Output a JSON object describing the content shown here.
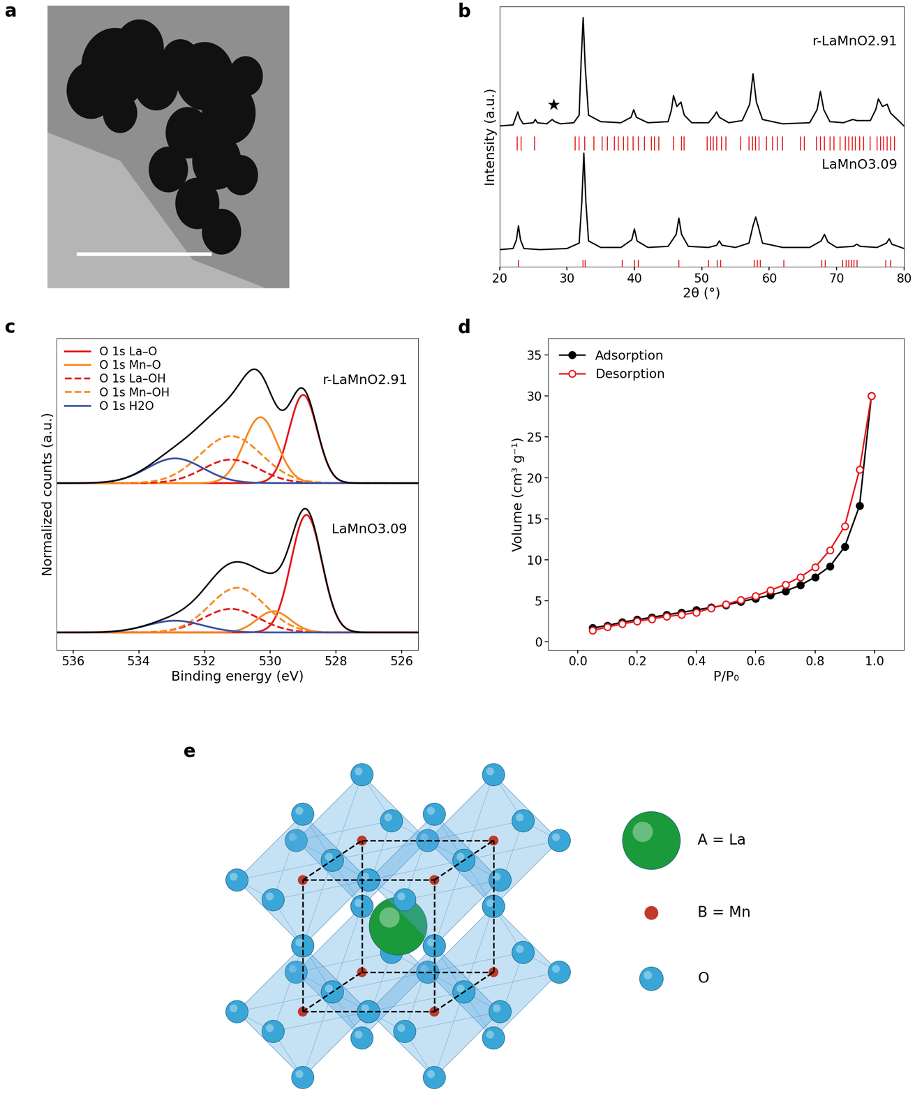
{
  "chart_data": [
    {
      "panel": "a",
      "type": "image"
    },
    {
      "panel": "b",
      "type": "line",
      "y_label": "Intensity (a.u.)",
      "x_label": "2θ (°)",
      "xlim": [
        20,
        80
      ],
      "xticks": [
        20,
        30,
        40,
        50,
        60,
        70,
        80
      ],
      "ylim": [
        0,
        2.4
      ],
      "tick_labels": "x",
      "series": [
        {
          "name": "r-LaMnO2.91",
          "color": "#000000",
          "x": [
            20,
            22,
            22.4,
            22.7,
            23,
            23.5,
            25,
            25.3,
            25.6,
            27,
            27.8,
            28.2,
            29,
            31,
            31.8,
            32.1,
            32.4,
            32.7,
            33.2,
            35,
            38,
            39.5,
            39.9,
            40.3,
            42,
            45,
            45.5,
            45.8,
            46.3,
            46.9,
            47.4,
            48.5,
            51,
            51.8,
            52.2,
            52.6,
            54,
            56,
            57.1,
            57.6,
            58.1,
            59,
            62,
            66,
            67.1,
            67.6,
            68.1,
            69,
            71,
            72.4,
            73,
            75,
            75.8,
            76.2,
            76.8,
            77.5,
            78,
            80
          ],
          "values": [
            1.3,
            1.31,
            1.38,
            1.43,
            1.37,
            1.32,
            1.33,
            1.36,
            1.33,
            1.32,
            1.36,
            1.34,
            1.32,
            1.33,
            1.4,
            1.9,
            2.3,
            1.85,
            1.4,
            1.34,
            1.33,
            1.38,
            1.45,
            1.38,
            1.33,
            1.34,
            1.45,
            1.58,
            1.48,
            1.52,
            1.4,
            1.33,
            1.33,
            1.39,
            1.43,
            1.38,
            1.33,
            1.35,
            1.5,
            1.78,
            1.52,
            1.36,
            1.32,
            1.33,
            1.45,
            1.62,
            1.45,
            1.34,
            1.33,
            1.36,
            1.35,
            1.35,
            1.45,
            1.55,
            1.48,
            1.5,
            1.42,
            1.3
          ],
          "reflections": [
            22.6,
            23.2,
            25.2,
            31.2,
            31.8,
            32.6,
            34.0,
            35.2,
            36.0,
            37.0,
            37.6,
            38.4,
            39.0,
            39.8,
            40.6,
            41.5,
            42.5,
            43.0,
            43.6,
            45.8,
            47.0,
            47.4,
            50.8,
            51.3,
            51.7,
            52.2,
            52.9,
            53.6,
            55.8,
            57.0,
            57.5,
            58.0,
            58.5,
            59.6,
            60.5,
            61.2,
            62.0,
            64.6,
            65.2,
            67.0,
            67.6,
            68.2,
            69.0,
            69.6,
            70.5,
            71.3,
            71.8,
            72.3,
            72.8,
            73.4,
            74.0,
            75.0,
            76.0,
            76.5,
            77.0,
            77.5,
            78.0,
            78.6
          ]
        },
        {
          "name": "LaMnO3.09",
          "color": "#000000",
          "x": [
            20,
            22,
            22.5,
            22.8,
            23.1,
            23.6,
            26,
            30,
            31.8,
            32.2,
            32.5,
            32.8,
            33.2,
            35,
            38,
            39.6,
            40,
            40.4,
            42,
            45,
            46.2,
            46.6,
            47,
            48,
            51,
            52.2,
            52.6,
            53,
            55,
            57,
            57.6,
            58,
            58.4,
            59,
            62,
            66,
            67.7,
            68.2,
            68.7,
            70,
            72.5,
            73,
            73.5,
            76,
            77.4,
            77.8,
            78.2,
            80
          ],
          "values": [
            0.16,
            0.17,
            0.25,
            0.38,
            0.25,
            0.17,
            0.16,
            0.17,
            0.22,
            0.6,
            1.05,
            0.6,
            0.24,
            0.18,
            0.18,
            0.25,
            0.35,
            0.24,
            0.18,
            0.19,
            0.3,
            0.45,
            0.3,
            0.19,
            0.18,
            0.2,
            0.24,
            0.2,
            0.18,
            0.22,
            0.38,
            0.46,
            0.37,
            0.22,
            0.18,
            0.18,
            0.24,
            0.3,
            0.23,
            0.18,
            0.19,
            0.21,
            0.19,
            0.18,
            0.22,
            0.26,
            0.21,
            0.17
          ],
          "reflections": [
            22.8,
            32.4,
            32.7,
            38.2,
            40.0,
            40.6,
            46.6,
            51.0,
            52.3,
            52.8,
            57.8,
            58.2,
            58.7,
            62.2,
            67.8,
            68.3,
            70.9,
            71.4,
            71.8,
            72.2,
            72.6,
            73.0,
            77.3,
            78.0
          ]
        }
      ],
      "annotations": [
        {
          "text": "★",
          "x": 28,
          "y": 1.42
        }
      ]
    },
    {
      "panel": "c",
      "type": "peak_fit",
      "x_label": "Binding energy (eV)",
      "y_label": "Normalized counts (a.u.)",
      "xlim": [
        536.5,
        525.5
      ],
      "xticks": [
        536,
        534,
        532,
        530,
        528,
        526
      ],
      "ylim": [
        -0.15,
        2.5
      ],
      "tick_labels": "x",
      "legend": "upper left",
      "spectra": [
        {
          "name": "r-LaMnO2.91",
          "baseline": 1.27,
          "peaks": [
            {
              "name": "O 1s La–O",
              "color": "#e31a1c",
              "line_style": "solid",
              "center": 529.0,
              "height": 0.75,
              "fwhm": 1.0
            },
            {
              "name": "O 1s Mn–O",
              "color": "#f7891f",
              "line_style": "solid",
              "center": 530.3,
              "height": 0.56,
              "fwhm": 1.2
            },
            {
              "name": "O 1s La–OH",
              "color": "#e31a1c",
              "line_style": "dashed",
              "center": 531.2,
              "height": 0.2,
              "fwhm": 2.0
            },
            {
              "name": "O 1s Mn–OH",
              "color": "#f7891f",
              "line_style": "dashed",
              "center": 531.2,
              "height": 0.4,
              "fwhm": 2.2
            },
            {
              "name": "O 1s H2O",
              "color": "#3a54a4",
              "line_style": "solid",
              "center": 532.9,
              "height": 0.21,
              "fwhm": 2.0
            }
          ]
        },
        {
          "name": "LaMnO3.09",
          "baseline": 0.0,
          "peaks": [
            {
              "name": "O 1s La–O",
              "color": "#e31a1c",
              "line_style": "solid",
              "center": 528.9,
              "height": 1.0,
              "fwhm": 1.1
            },
            {
              "name": "O 1s Mn–O",
              "color": "#f7891f",
              "line_style": "solid",
              "center": 529.9,
              "height": 0.18,
              "fwhm": 1.2
            },
            {
              "name": "O 1s La–OH",
              "color": "#e31a1c",
              "line_style": "dashed",
              "center": 531.2,
              "height": 0.2,
              "fwhm": 2.0
            },
            {
              "name": "O 1s Mn–OH",
              "color": "#f7891f",
              "line_style": "dashed",
              "center": 531.0,
              "height": 0.38,
              "fwhm": 2.0
            },
            {
              "name": "O 1s H2O",
              "color": "#3a54a4",
              "line_style": "solid",
              "center": 532.9,
              "height": 0.1,
              "fwhm": 2.0
            }
          ]
        }
      ]
    },
    {
      "panel": "d",
      "type": "line",
      "x_label": "P/P₀",
      "y_label": "Volume (cm³ g⁻¹)",
      "xlim": [
        -0.1,
        1.1
      ],
      "xticks": [
        {
          "value": 0,
          "label": "0.0"
        },
        0.2,
        0.4,
        0.6,
        0.8,
        {
          "value": 1,
          "label": "1.0"
        }
      ],
      "ylim": [
        -1,
        37
      ],
      "yticks": [
        0,
        5,
        10,
        15,
        20,
        25,
        30,
        35
      ],
      "legend": "upper left",
      "x": [
        0.05,
        0.1,
        0.15,
        0.2,
        0.25,
        0.3,
        0.35,
        0.4,
        0.45,
        0.5,
        0.55,
        0.6,
        0.65,
        0.7,
        0.75,
        0.8,
        0.85,
        0.9,
        0.95,
        0.99
      ],
      "series": [
        {
          "name": "Adsorption",
          "color": "#000000",
          "marker": "filled_circle",
          "values": [
            1.7,
            2.0,
            2.4,
            2.7,
            3.0,
            3.3,
            3.6,
            3.9,
            4.2,
            4.5,
            4.9,
            5.3,
            5.7,
            6.2,
            6.9,
            7.9,
            9.2,
            11.6,
            16.6,
            30.0
          ]
        },
        {
          "name": "Desorption",
          "color": "#e8191f",
          "marker": "open_circle",
          "values": [
            1.4,
            1.8,
            2.2,
            2.5,
            2.8,
            3.1,
            3.3,
            3.6,
            4.1,
            4.6,
            5.1,
            5.6,
            6.3,
            7.0,
            7.9,
            9.1,
            11.2,
            14.1,
            21.0,
            30.0
          ]
        }
      ]
    },
    {
      "panel": "e",
      "type": "diagram",
      "labels": [
        {
          "text": "A = La",
          "color": "#1a9a3a"
        },
        {
          "text": "B = Mn",
          "color": "#c0392b"
        },
        {
          "text": "O",
          "color": "#3aa6d8"
        }
      ]
    }
  ]
}
